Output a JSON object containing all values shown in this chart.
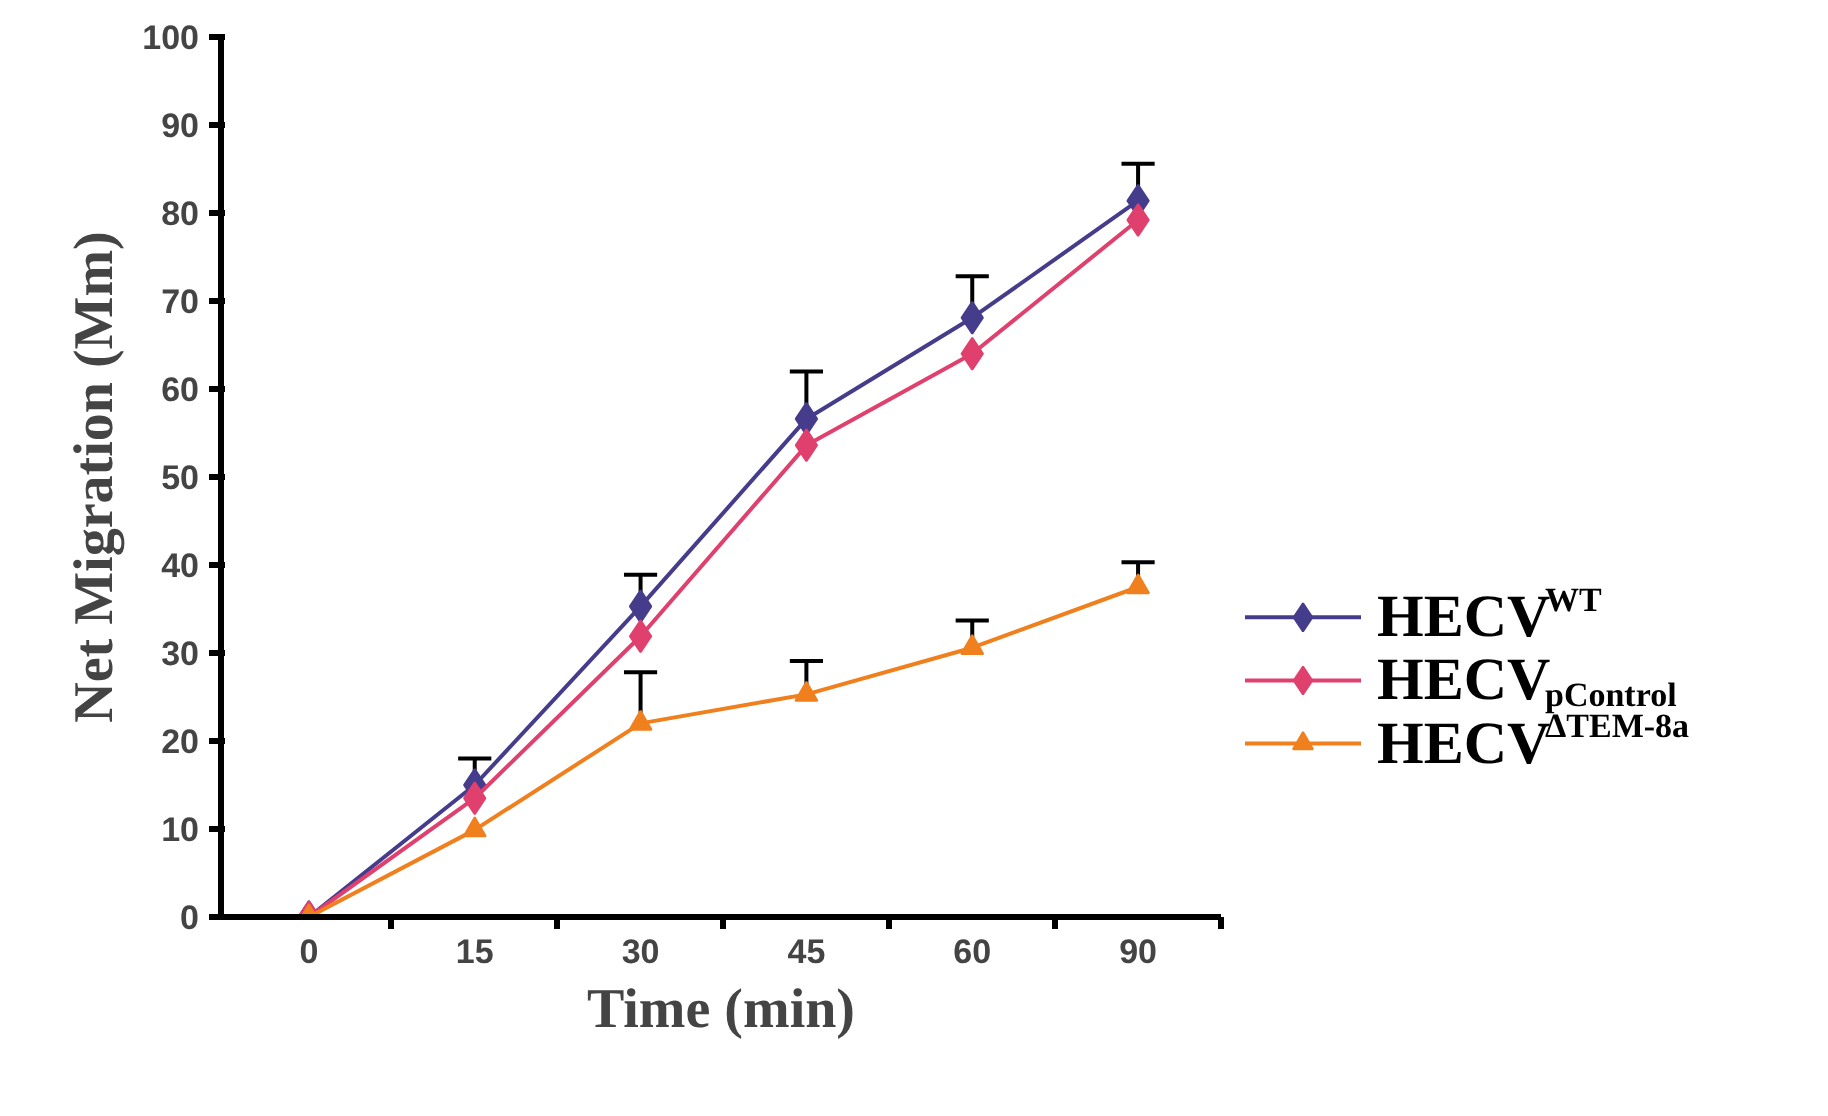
{
  "chart_data": {
    "type": "line",
    "xlabel": "Time (min)",
    "ylabel": "Net Migration (Mm)",
    "categories": [
      "0",
      "15",
      "30",
      "45",
      "60",
      "90"
    ],
    "ylim": [
      0,
      100
    ],
    "yticks": [
      0,
      10,
      20,
      30,
      40,
      50,
      60,
      70,
      80,
      90,
      100
    ],
    "grid": false,
    "legend": "bottom right",
    "line_style": "solid",
    "series": [
      {
        "name": "HECV$^{WT}$",
        "color": "#463c8c",
        "marker": "diamond",
        "values": [
          0,
          15,
          35.3,
          56.6,
          68.1,
          81.4
        ],
        "errors": [
          null,
          [
            15,
            18
          ],
          [
            35.3,
            38.9
          ],
          [
            56.6,
            62
          ],
          [
            68.1,
            72.8
          ],
          [
            81.4,
            85.6
          ]
        ]
      },
      {
        "name": "HECV$_{pControl}$",
        "color": "#e0406e",
        "marker": "diamond",
        "values": [
          0,
          13.5,
          31.9,
          53.6,
          64,
          79.2
        ]
      },
      {
        "name": "HECV$^{ΔTEM-8a}$",
        "color": "#f0801e",
        "marker": "triangle",
        "values": [
          0,
          9.9,
          22,
          25.3,
          30.6,
          37.5
        ],
        "errors": [
          null,
          null,
          [
            22,
            27.8
          ],
          [
            25.3,
            29.1
          ],
          [
            30.6,
            33.7
          ],
          [
            37.5,
            40.3
          ]
        ]
      }
    ]
  }
}
